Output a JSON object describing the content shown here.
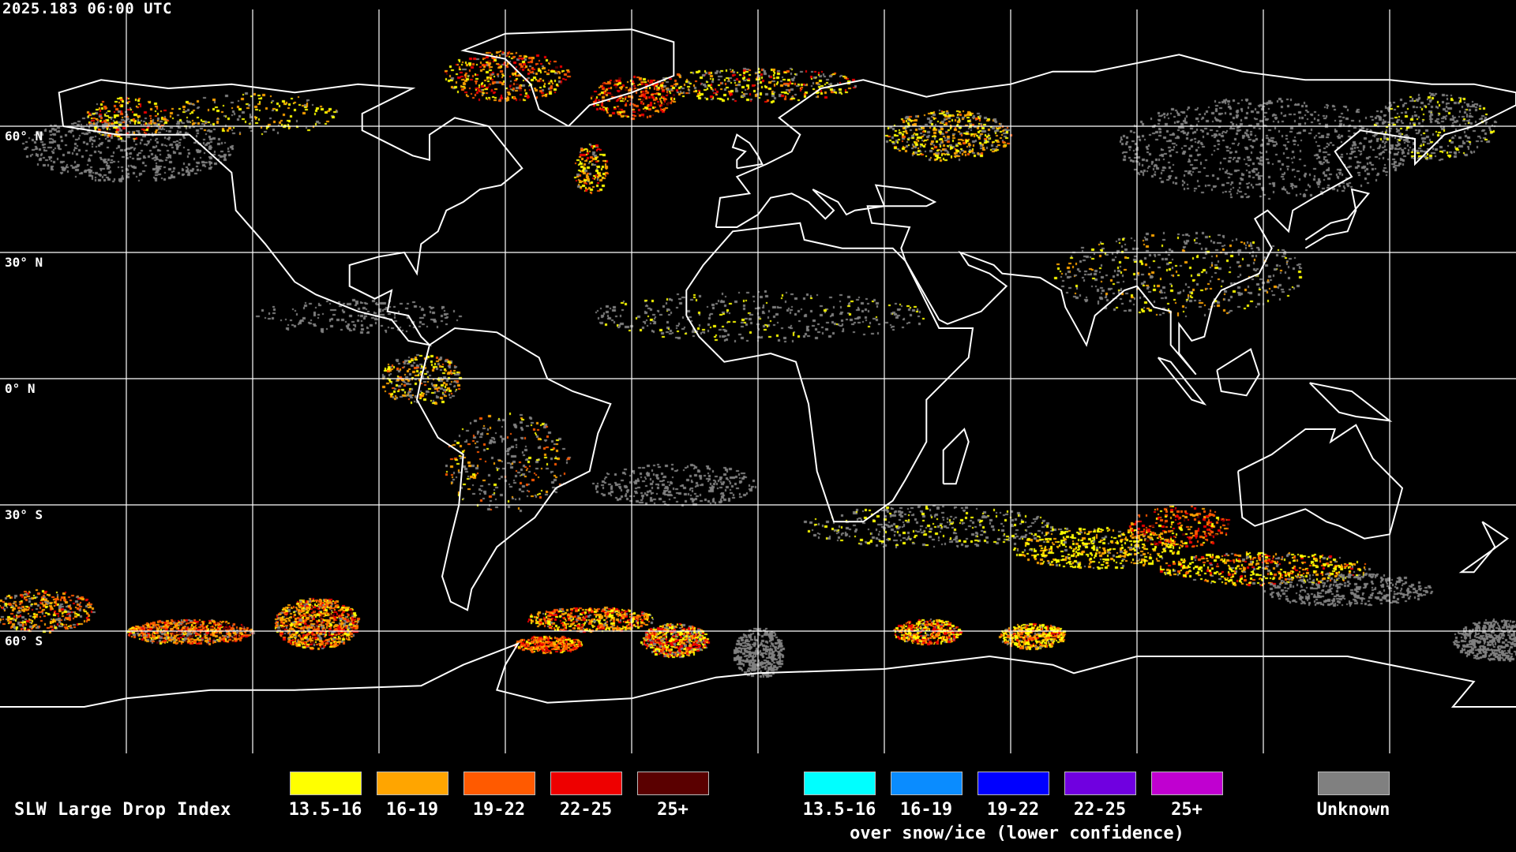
{
  "timestamp": "2025.183 06:00 UTC",
  "lat_labels": [
    "60° N",
    "30° N",
    "0° N",
    "30° S",
    "60° S"
  ],
  "legend": {
    "title": "SLW Large Drop Index",
    "normal": [
      {
        "label": "13.5-16",
        "color": "#ffff00"
      },
      {
        "label": "16-19",
        "color": "#ffa500"
      },
      {
        "label": "19-22",
        "color": "#ff5a00"
      },
      {
        "label": "22-25",
        "color": "#ee0000"
      },
      {
        "label": "25+",
        "color": "#5a0000"
      }
    ],
    "snow_ice": [
      {
        "label": "13.5-16",
        "color": "#00ffff"
      },
      {
        "label": "16-19",
        "color": "#0a8cff"
      },
      {
        "label": "19-22",
        "color": "#0000ff"
      },
      {
        "label": "22-25",
        "color": "#7000e0"
      },
      {
        "label": "25+",
        "color": "#c000d0"
      }
    ],
    "snow_ice_caption": "over snow/ice (lower confidence)",
    "unknown": {
      "label": "Unknown",
      "color": "#808080"
    }
  },
  "coastline_color": "#ffffff",
  "gridline_color": "#ffffff"
}
